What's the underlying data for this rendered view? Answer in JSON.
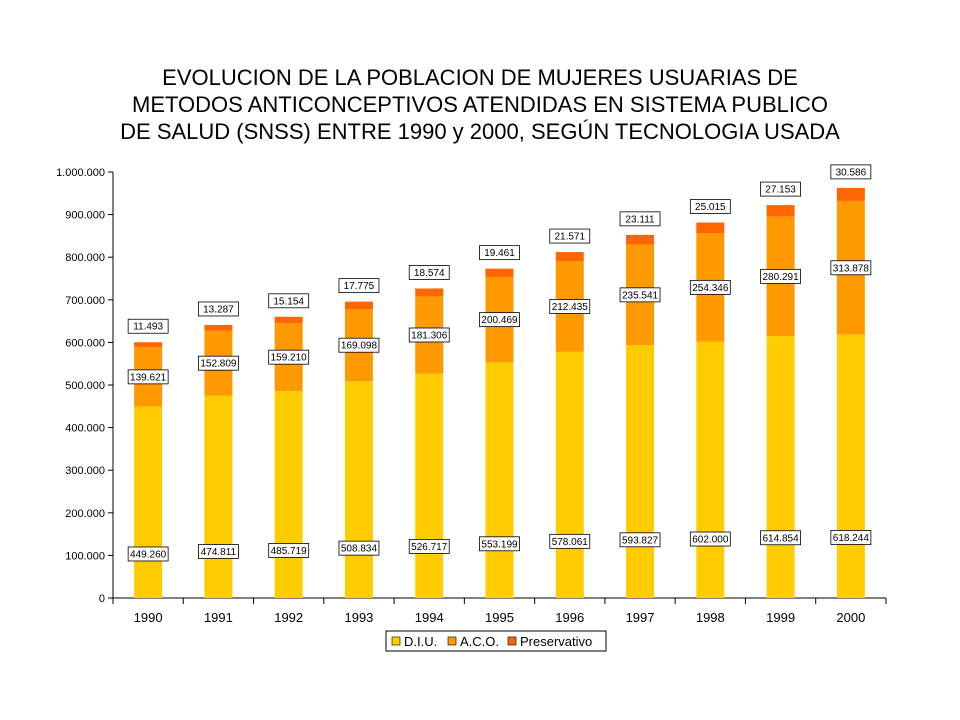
{
  "chart_data": {
    "type": "bar",
    "stacked": true,
    "title_lines": [
      "EVOLUCION DE LA POBLACION DE MUJERES USUARIAS DE",
      "METODOS ANTICONCEPTIVOS ATENDIDAS EN SISTEMA PUBLICO",
      "DE SALUD (SNSS) ENTRE 1990 y 2000, SEGÚN TECNOLOGIA USADA"
    ],
    "categories": [
      "1990",
      "1991",
      "1992",
      "1993",
      "1994",
      "1995",
      "1996",
      "1997",
      "1998",
      "1999",
      "2000"
    ],
    "series": [
      {
        "name": "D.I.U.",
        "color": "#FFCC00",
        "values": [
          449260,
          474811,
          485719,
          508834,
          526717,
          553199,
          578061,
          593827,
          602000,
          614854,
          618244
        ],
        "labels": [
          "449.260",
          "474.811",
          "485.719",
          "508.834",
          "526.717",
          "553.199",
          "578.061",
          "593.827",
          "602.000",
          "614.854",
          "618.244"
        ]
      },
      {
        "name": "A.C.O.",
        "color": "#FF9900",
        "values": [
          139621,
          152809,
          159210,
          169098,
          181306,
          200469,
          212435,
          235541,
          254346,
          280291,
          313878
        ],
        "labels": [
          "139.621",
          "152.809",
          "159.210",
          "169.098",
          "181.306",
          "200.469",
          "212.435",
          "235.541",
          "254.346",
          "280.291",
          "313.878"
        ]
      },
      {
        "name": "Preservativo",
        "color": "#FF6600",
        "values": [
          11493,
          13287,
          15154,
          17775,
          18574,
          19461,
          21571,
          23111,
          25015,
          27153,
          30586
        ],
        "labels": [
          "11.493",
          "13.287",
          "15.154",
          "17.775",
          "18.574",
          "19.461",
          "21.571",
          "23.111",
          "25.015",
          "27.153",
          "30.586"
        ]
      }
    ],
    "ylim": [
      0,
      1000000
    ],
    "yticks": [
      0,
      100000,
      200000,
      300000,
      400000,
      500000,
      600000,
      700000,
      800000,
      900000,
      1000000
    ],
    "ytick_labels": [
      "0",
      "100.000",
      "200.000",
      "300.000",
      "400.000",
      "500.000",
      "600.000",
      "700.000",
      "800.000",
      "900.000",
      "1.000.000"
    ],
    "grid": false,
    "legend_position": "bottom"
  }
}
